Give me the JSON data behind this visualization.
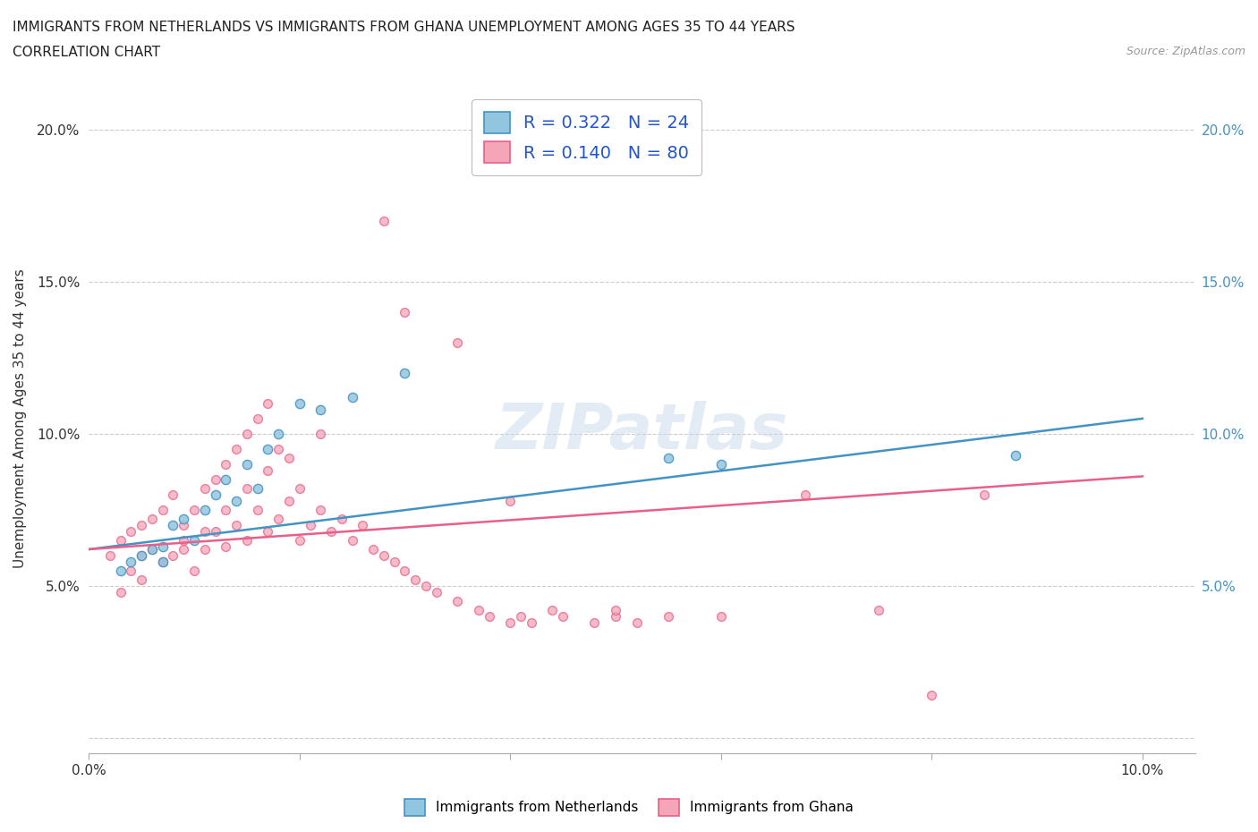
{
  "title_line1": "IMMIGRANTS FROM NETHERLANDS VS IMMIGRANTS FROM GHANA UNEMPLOYMENT AMONG AGES 35 TO 44 YEARS",
  "title_line2": "CORRELATION CHART",
  "source": "Source: ZipAtlas.com",
  "ylabel": "Unemployment Among Ages 35 to 44 years",
  "xlim": [
    0.0,
    0.105
  ],
  "ylim": [
    -0.005,
    0.215
  ],
  "xticks": [
    0.0,
    0.02,
    0.04,
    0.06,
    0.08,
    0.1
  ],
  "xticklabels": [
    "0.0%",
    "",
    "",
    "",
    "",
    "10.0%"
  ],
  "yticks": [
    0.0,
    0.05,
    0.1,
    0.15,
    0.2
  ],
  "yticklabels_left": [
    "",
    "5.0%",
    "10.0%",
    "15.0%",
    "20.0%"
  ],
  "yticklabels_right": [
    "",
    "5.0%",
    "10.0%",
    "15.0%",
    "20.0%"
  ],
  "netherlands_color": "#92c5de",
  "netherlands_edge": "#4393c3",
  "ghana_color": "#f4a5b8",
  "ghana_edge": "#e8608a",
  "netherlands_line_color": "#4393c3",
  "ghana_line_color": "#e8608a",
  "netherlands_R": 0.322,
  "netherlands_N": 24,
  "ghana_R": 0.14,
  "ghana_N": 80,
  "watermark_text": "ZIPatlas",
  "legend_label_netherlands": "Immigrants from Netherlands",
  "legend_label_ghana": "Immigrants from Ghana",
  "nl_scatter_x": [
    0.003,
    0.004,
    0.005,
    0.006,
    0.007,
    0.007,
    0.008,
    0.009,
    0.01,
    0.011,
    0.012,
    0.013,
    0.014,
    0.015,
    0.016,
    0.017,
    0.018,
    0.02,
    0.022,
    0.025,
    0.03,
    0.055,
    0.06,
    0.088
  ],
  "nl_scatter_y": [
    0.055,
    0.058,
    0.06,
    0.062,
    0.063,
    0.058,
    0.07,
    0.072,
    0.065,
    0.075,
    0.08,
    0.085,
    0.078,
    0.09,
    0.082,
    0.095,
    0.1,
    0.11,
    0.108,
    0.112,
    0.12,
    0.092,
    0.09,
    0.093
  ],
  "gh_scatter_x": [
    0.002,
    0.003,
    0.004,
    0.004,
    0.005,
    0.005,
    0.006,
    0.006,
    0.007,
    0.007,
    0.008,
    0.008,
    0.009,
    0.009,
    0.01,
    0.01,
    0.011,
    0.011,
    0.012,
    0.012,
    0.013,
    0.013,
    0.014,
    0.014,
    0.015,
    0.015,
    0.016,
    0.016,
    0.017,
    0.017,
    0.018,
    0.018,
    0.019,
    0.02,
    0.02,
    0.021,
    0.022,
    0.023,
    0.024,
    0.025,
    0.026,
    0.027,
    0.028,
    0.029,
    0.03,
    0.031,
    0.032,
    0.033,
    0.035,
    0.037,
    0.038,
    0.04,
    0.041,
    0.042,
    0.044,
    0.045,
    0.048,
    0.05,
    0.052,
    0.055,
    0.028,
    0.03,
    0.035,
    0.04,
    0.05,
    0.06,
    0.068,
    0.075,
    0.08,
    0.085,
    0.003,
    0.005,
    0.007,
    0.009,
    0.011,
    0.013,
    0.015,
    0.017,
    0.019,
    0.022
  ],
  "gh_scatter_y": [
    0.06,
    0.065,
    0.068,
    0.055,
    0.06,
    0.07,
    0.062,
    0.072,
    0.058,
    0.075,
    0.06,
    0.08,
    0.065,
    0.07,
    0.055,
    0.075,
    0.062,
    0.082,
    0.068,
    0.085,
    0.063,
    0.09,
    0.07,
    0.095,
    0.065,
    0.1,
    0.075,
    0.105,
    0.068,
    0.11,
    0.072,
    0.095,
    0.078,
    0.065,
    0.082,
    0.07,
    0.075,
    0.068,
    0.072,
    0.065,
    0.07,
    0.062,
    0.06,
    0.058,
    0.055,
    0.052,
    0.05,
    0.048,
    0.045,
    0.042,
    0.04,
    0.038,
    0.04,
    0.038,
    0.042,
    0.04,
    0.038,
    0.04,
    0.038,
    0.04,
    0.17,
    0.14,
    0.13,
    0.078,
    0.042,
    0.04,
    0.08,
    0.042,
    0.014,
    0.08,
    0.048,
    0.052,
    0.058,
    0.062,
    0.068,
    0.075,
    0.082,
    0.088,
    0.092,
    0.1
  ]
}
